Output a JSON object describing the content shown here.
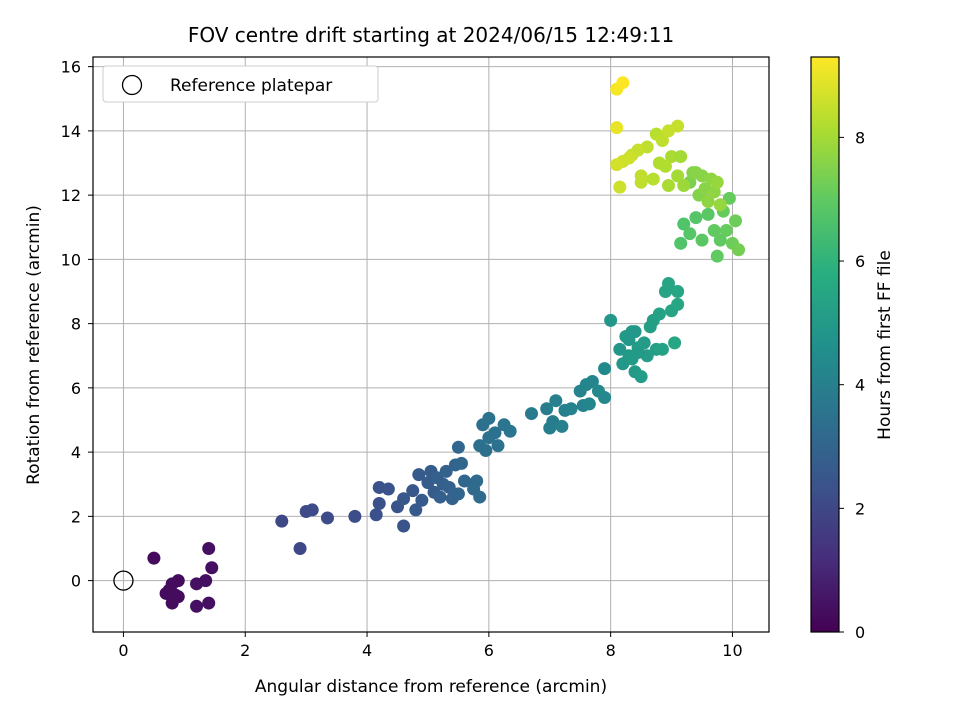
{
  "chart_data": {
    "type": "scatter",
    "title": "FOV centre drift starting at 2024/06/15 12:49:11",
    "xlabel": "Angular distance from reference (arcmin)",
    "ylabel": "Rotation from reference (arcmin)",
    "xlim": [
      -0.5,
      10.6
    ],
    "ylim": [
      -1.6,
      16.3
    ],
    "xticks": [
      0,
      2,
      4,
      6,
      8,
      10
    ],
    "yticks": [
      0,
      2,
      4,
      6,
      8,
      10,
      12,
      14,
      16
    ],
    "grid": true,
    "legend": {
      "placement": "upper-left",
      "entries": [
        "Reference platepar"
      ]
    },
    "reference_point": {
      "x": 0,
      "y": 0,
      "marker": "open-circle"
    },
    "colorbar": {
      "label": "Hours from first FF file",
      "range": [
        0,
        9.3
      ],
      "ticks": [
        0,
        2,
        4,
        6,
        8
      ],
      "colormap": "viridis"
    },
    "points": [
      [
        0.5,
        0.7,
        0.3
      ],
      [
        0.8,
        -0.1,
        0.3
      ],
      [
        0.9,
        0.0,
        0.3
      ],
      [
        0.75,
        -0.3,
        0.3
      ],
      [
        0.7,
        -0.4,
        0.3
      ],
      [
        0.9,
        -0.5,
        0.3
      ],
      [
        0.8,
        -0.7,
        0.3
      ],
      [
        1.2,
        -0.1,
        0.4
      ],
      [
        1.35,
        0.0,
        0.4
      ],
      [
        1.4,
        1.0,
        0.4
      ],
      [
        1.45,
        0.4,
        0.4
      ],
      [
        1.2,
        -0.8,
        0.4
      ],
      [
        1.4,
        -0.7,
        0.4
      ],
      [
        0.85,
        -0.45,
        0.3
      ],
      [
        2.6,
        1.85,
        2.0
      ],
      [
        2.9,
        1.0,
        2.0
      ],
      [
        3.0,
        2.15,
        2.1
      ],
      [
        3.1,
        2.2,
        2.1
      ],
      [
        3.35,
        1.95,
        2.1
      ],
      [
        3.8,
        2.0,
        2.2
      ],
      [
        4.15,
        2.05,
        2.3
      ],
      [
        4.2,
        2.4,
        2.3
      ],
      [
        4.2,
        2.9,
        2.4
      ],
      [
        4.35,
        2.85,
        2.4
      ],
      [
        4.5,
        2.3,
        2.4
      ],
      [
        4.6,
        1.7,
        2.4
      ],
      [
        4.6,
        2.55,
        2.5
      ],
      [
        4.75,
        2.8,
        2.5
      ],
      [
        4.8,
        2.2,
        2.6
      ],
      [
        4.85,
        3.3,
        2.6
      ],
      [
        4.9,
        2.5,
        2.6
      ],
      [
        5.0,
        3.05,
        2.7
      ],
      [
        5.05,
        3.4,
        2.7
      ],
      [
        5.1,
        2.75,
        2.7
      ],
      [
        5.15,
        3.2,
        2.8
      ],
      [
        5.2,
        2.6,
        2.8
      ],
      [
        5.25,
        3.0,
        2.8
      ],
      [
        5.3,
        3.4,
        2.9
      ],
      [
        5.35,
        2.9,
        2.9
      ],
      [
        5.4,
        2.55,
        2.9
      ],
      [
        5.45,
        3.6,
        3.0
      ],
      [
        5.5,
        2.7,
        3.0
      ],
      [
        5.5,
        4.15,
        3.1
      ],
      [
        5.55,
        3.65,
        3.1
      ],
      [
        5.6,
        3.1,
        3.1
      ],
      [
        5.75,
        2.85,
        3.2
      ],
      [
        5.8,
        3.1,
        3.2
      ],
      [
        5.85,
        2.6,
        3.2
      ],
      [
        5.85,
        4.2,
        3.4
      ],
      [
        5.9,
        4.85,
        3.4
      ],
      [
        5.95,
        4.05,
        3.4
      ],
      [
        6.0,
        4.45,
        3.5
      ],
      [
        6.0,
        5.05,
        3.5
      ],
      [
        6.1,
        4.6,
        3.5
      ],
      [
        6.15,
        4.2,
        3.5
      ],
      [
        6.25,
        4.85,
        3.6
      ],
      [
        6.35,
        4.65,
        3.6
      ],
      [
        6.7,
        5.2,
        3.8
      ],
      [
        6.95,
        5.35,
        3.9
      ],
      [
        7.0,
        4.75,
        3.9
      ],
      [
        7.05,
        4.95,
        3.9
      ],
      [
        7.1,
        5.6,
        4.0
      ],
      [
        7.2,
        4.8,
        4.0
      ],
      [
        7.25,
        5.3,
        4.0
      ],
      [
        7.35,
        5.35,
        4.1
      ],
      [
        7.5,
        5.9,
        4.1
      ],
      [
        7.55,
        5.45,
        4.1
      ],
      [
        7.6,
        6.1,
        4.2
      ],
      [
        7.65,
        5.5,
        4.2
      ],
      [
        7.7,
        6.2,
        4.2
      ],
      [
        7.8,
        5.9,
        4.3
      ],
      [
        7.9,
        5.7,
        4.3
      ],
      [
        7.9,
        6.6,
        4.4
      ],
      [
        8.0,
        8.1,
        4.9
      ],
      [
        8.15,
        7.2,
        4.9
      ],
      [
        8.2,
        6.75,
        4.9
      ],
      [
        8.25,
        7.6,
        5.0
      ],
      [
        8.3,
        7.0,
        5.0
      ],
      [
        8.35,
        7.75,
        5.0
      ],
      [
        8.4,
        6.5,
        5.0
      ],
      [
        8.45,
        7.25,
        5.1
      ],
      [
        8.5,
        6.35,
        5.1
      ],
      [
        8.55,
        7.4,
        5.1
      ],
      [
        8.6,
        7.0,
        5.1
      ],
      [
        8.65,
        7.9,
        5.2
      ],
      [
        8.7,
        8.1,
        5.2
      ],
      [
        8.75,
        7.2,
        5.2
      ],
      [
        8.8,
        8.3,
        5.3
      ],
      [
        8.85,
        7.2,
        5.3
      ],
      [
        8.9,
        9.0,
        5.4
      ],
      [
        8.95,
        9.25,
        5.4
      ],
      [
        9.0,
        8.4,
        5.4
      ],
      [
        9.05,
        7.4,
        5.5
      ],
      [
        9.1,
        8.6,
        5.5
      ],
      [
        9.1,
        9.0,
        5.5
      ],
      [
        8.3,
        7.5,
        4.9
      ],
      [
        8.4,
        7.75,
        4.9
      ],
      [
        8.45,
        7.1,
        5.0
      ],
      [
        8.35,
        6.9,
        5.0
      ],
      [
        9.15,
        10.5,
        6.7
      ],
      [
        9.2,
        11.1,
        6.7
      ],
      [
        9.3,
        10.8,
        6.8
      ],
      [
        9.4,
        11.3,
        6.8
      ],
      [
        9.5,
        10.6,
        6.9
      ],
      [
        9.6,
        11.4,
        6.9
      ],
      [
        9.7,
        10.9,
        7.0
      ],
      [
        9.75,
        10.1,
        7.0
      ],
      [
        9.8,
        10.6,
        7.0
      ],
      [
        9.85,
        11.5,
        7.1
      ],
      [
        9.9,
        10.9,
        7.1
      ],
      [
        9.95,
        11.9,
        7.1
      ],
      [
        10.0,
        10.5,
        7.2
      ],
      [
        10.05,
        11.2,
        7.2
      ],
      [
        10.1,
        10.3,
        7.3
      ],
      [
        9.3,
        12.4,
        7.4
      ],
      [
        9.35,
        12.7,
        7.5
      ],
      [
        9.45,
        12.0,
        7.5
      ],
      [
        9.5,
        12.6,
        7.6
      ],
      [
        9.55,
        12.2,
        7.6
      ],
      [
        9.6,
        11.8,
        7.7
      ],
      [
        9.65,
        12.5,
        7.7
      ],
      [
        9.7,
        12.1,
        7.7
      ],
      [
        9.75,
        12.4,
        7.8
      ],
      [
        9.8,
        11.7,
        7.8
      ],
      [
        9.2,
        12.3,
        7.9
      ],
      [
        9.1,
        12.6,
        8.0
      ],
      [
        9.0,
        13.2,
        8.1
      ],
      [
        8.95,
        12.3,
        8.1
      ],
      [
        8.9,
        12.9,
        8.2
      ],
      [
        8.8,
        13.0,
        8.2
      ],
      [
        8.75,
        13.9,
        8.3
      ],
      [
        8.7,
        12.5,
        8.3
      ],
      [
        8.6,
        13.5,
        8.4
      ],
      [
        8.5,
        12.4,
        8.4
      ],
      [
        8.5,
        12.6,
        8.4
      ],
      [
        8.45,
        13.4,
        8.5
      ],
      [
        8.35,
        13.25,
        8.5
      ],
      [
        8.3,
        13.15,
        8.6
      ],
      [
        8.2,
        13.05,
        8.6
      ],
      [
        8.15,
        12.25,
        8.6
      ],
      [
        8.1,
        12.95,
        8.7
      ],
      [
        8.95,
        14.0,
        8.5
      ],
      [
        9.1,
        14.15,
        8.5
      ],
      [
        8.85,
        13.7,
        8.4
      ],
      [
        8.1,
        14.1,
        9.0
      ],
      [
        8.1,
        15.3,
        9.2
      ],
      [
        8.2,
        15.5,
        9.3
      ],
      [
        9.15,
        13.2,
        8.0
      ],
      [
        9.4,
        12.7,
        7.6
      ]
    ]
  }
}
